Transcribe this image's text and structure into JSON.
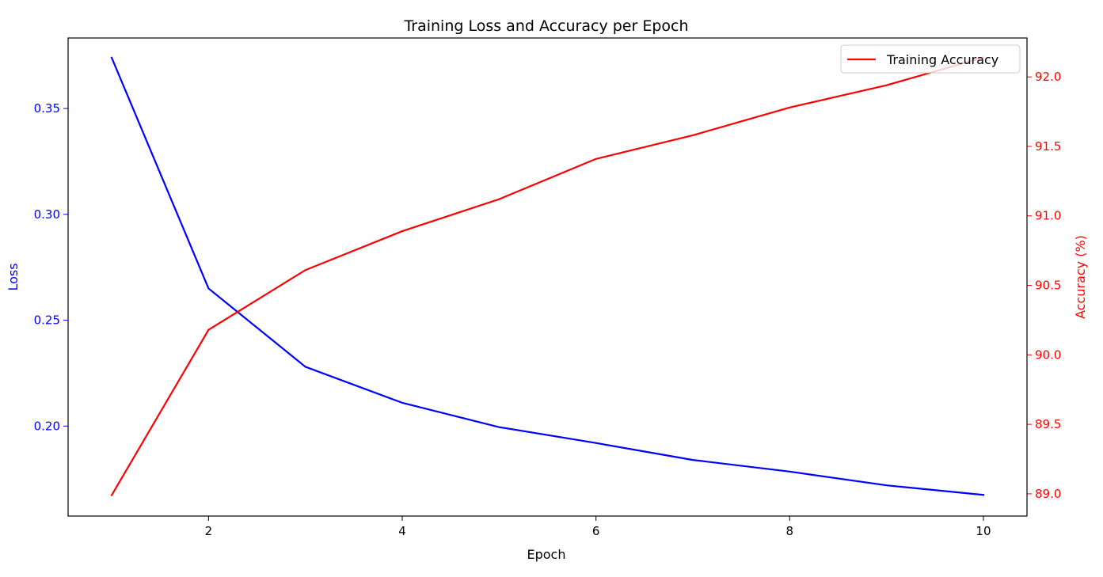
{
  "chart_data": {
    "type": "line",
    "title": "Training Loss and Accuracy per Epoch",
    "xlabel": "Epoch",
    "ylabel_left": "Loss",
    "ylabel_right": "Accuracy (%)",
    "x": [
      1,
      2,
      3,
      4,
      5,
      6,
      7,
      8,
      9,
      10
    ],
    "xlim": [
      0.55,
      10.45
    ],
    "ylim_left": [
      0.1575,
      0.3833
    ],
    "ylim_right": [
      88.84,
      92.28
    ],
    "x_ticks": [
      2,
      4,
      6,
      8,
      10
    ],
    "y_ticks_left": [
      0.2,
      0.25,
      0.3,
      0.35
    ],
    "y_ticks_right": [
      89.0,
      89.5,
      90.0,
      90.5,
      91.0,
      91.5,
      92.0
    ],
    "x_tick_labels": [
      "2",
      "4",
      "6",
      "8",
      "10"
    ],
    "y_tick_labels_left": [
      "0.20",
      "0.25",
      "0.30",
      "0.35"
    ],
    "y_tick_labels_right": [
      "89.0",
      "89.5",
      "90.0",
      "90.5",
      "91.0",
      "91.5",
      "92.0"
    ],
    "left_axis_color": "#0000ff",
    "right_axis_color": "#ff0000",
    "grid": false,
    "legend_position": "top-right",
    "series": [
      {
        "key": "loss",
        "axis": "left",
        "color": "#0000ff",
        "values": [
          0.374,
          0.265,
          0.228,
          0.211,
          0.1995,
          0.192,
          0.184,
          0.1785,
          0.172,
          0.1675
        ]
      },
      {
        "key": "accuracy",
        "axis": "right",
        "name": "Training Accuracy",
        "color": "#ff0000",
        "values": [
          88.99,
          90.18,
          90.61,
          90.89,
          91.12,
          91.41,
          91.58,
          91.78,
          91.94,
          92.14
        ]
      }
    ],
    "legend": [
      {
        "label": "Training Accuracy",
        "color": "#ff0000"
      }
    ]
  }
}
